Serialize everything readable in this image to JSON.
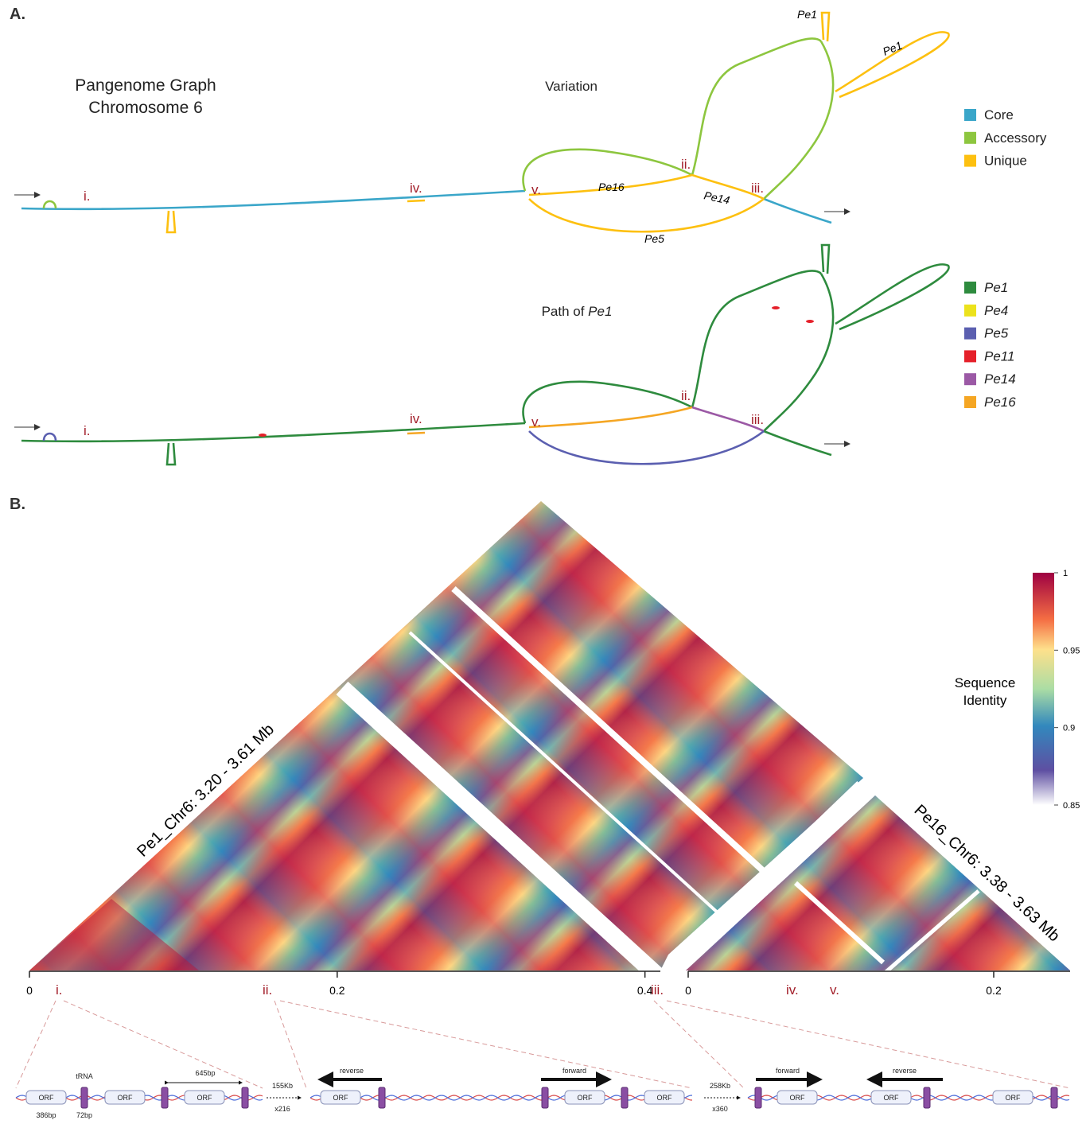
{
  "panel_a": {
    "label": "A.",
    "title": [
      "Pangenome Graph",
      "Chromosome 6"
    ],
    "top_graph": {
      "title": "Variation",
      "markers": [
        "i.",
        "ii.",
        "iii.",
        "iv.",
        "v."
      ],
      "path_labels": [
        "Pe1",
        "Pe1",
        "Pe16",
        "Pe14",
        "Pe5"
      ]
    },
    "bottom_graph": {
      "title": "Path of",
      "title_italic": "Pe1",
      "markers": [
        "i.",
        "ii.",
        "iii.",
        "iv.",
        "v."
      ]
    },
    "legend_top": [
      {
        "name": "Core",
        "color": "#3aa6c9"
      },
      {
        "name": "Accessory",
        "color": "#8dc63f"
      },
      {
        "name": "Unique",
        "color": "#fdc010"
      }
    ],
    "legend_bottom": [
      {
        "name": "Pe1",
        "color": "#2e8b3e"
      },
      {
        "name": "Pe4",
        "color": "#ece21c"
      },
      {
        "name": "Pe5",
        "color": "#5b5fb0"
      },
      {
        "name": "Pe11",
        "color": "#e5202a"
      },
      {
        "name": "Pe14",
        "color": "#9b59a5"
      },
      {
        "name": "Pe16",
        "color": "#f5a623"
      }
    ]
  },
  "panel_b": {
    "label": "B.",
    "left_title": "Pe1_Chr6: 3.20 - 3.61 Mb",
    "right_title": "Pe16_Chr6: 3.38 - 3.63 Mb",
    "colorbar": {
      "title": [
        "Sequence",
        "Identity"
      ],
      "lim": [
        0.85,
        1
      ],
      "ticks": [
        1,
        0.95,
        0.9,
        0.85
      ]
    },
    "left_axis": {
      "xlim": [
        0,
        0.41
      ],
      "xticks": [
        0,
        0.2,
        0.4
      ]
    },
    "right_axis": {
      "xlim": [
        0,
        0.25
      ],
      "xticks": [
        0,
        0.2
      ]
    },
    "markers": [
      "i.",
      "ii.",
      "iii.",
      "iv.",
      "v."
    ],
    "schematic": {
      "orf": "ORF",
      "trna": "tRNA",
      "span": "645bp",
      "orf_len": "386bp",
      "trna_len": "72bp",
      "gap1": "155Kb",
      "copies1": "x216",
      "gap2": "258Kb",
      "copies2": "x360",
      "reverse": "reverse",
      "forward": "forward"
    }
  }
}
